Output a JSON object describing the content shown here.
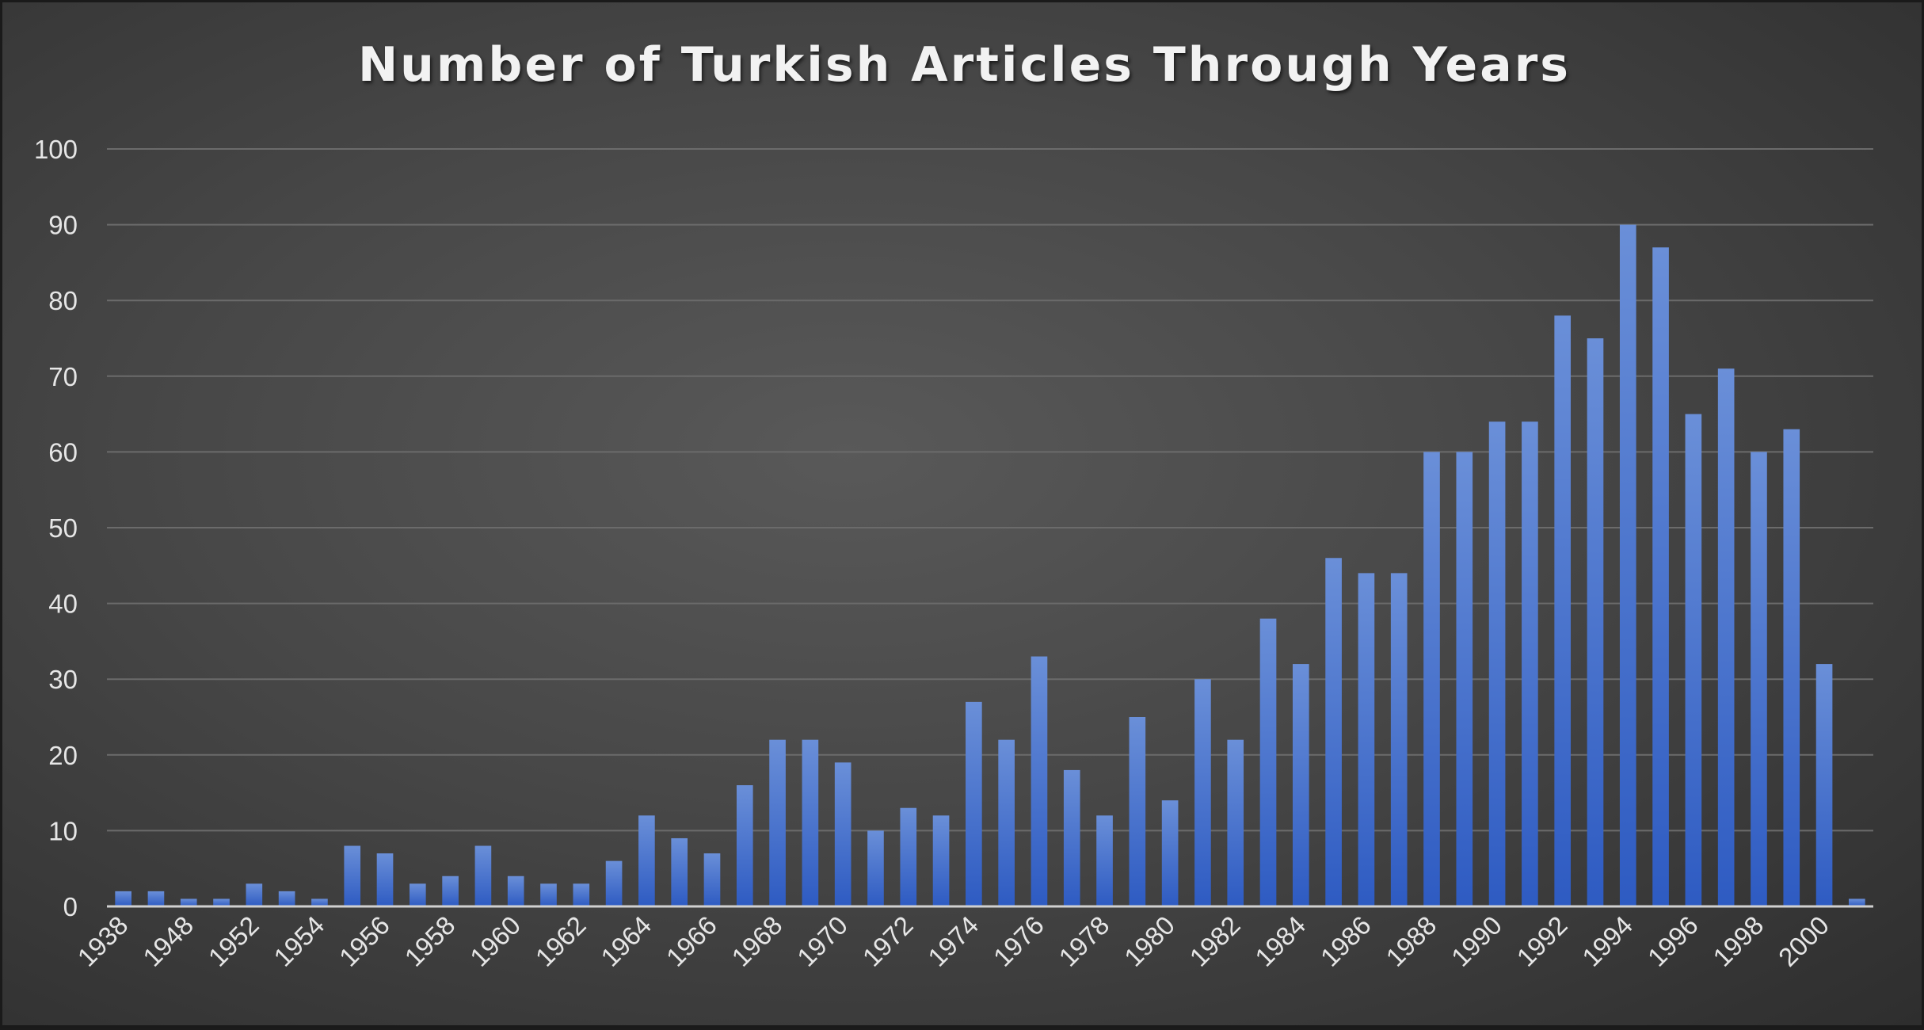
{
  "chart_data": {
    "type": "bar",
    "title": "Number of Turkish Articles Through Years",
    "xlabel": "",
    "ylabel": "",
    "ylim": [
      0,
      100
    ],
    "yticks": [
      0,
      10,
      20,
      30,
      40,
      50,
      60,
      70,
      80,
      90,
      100
    ],
    "grid": true,
    "legend": "none",
    "bar_color": "#4472c4",
    "categories": [
      "1938",
      "",
      "1948",
      "",
      "1952",
      "",
      "1954",
      "",
      "1956",
      "",
      "1958",
      "",
      "1960",
      "",
      "1962",
      "",
      "1964",
      "",
      "1966",
      "",
      "1968",
      "",
      "1970",
      "",
      "1972",
      "",
      "1974",
      "",
      "1976",
      "",
      "1978",
      "",
      "1980",
      "",
      "1982",
      "",
      "1984",
      "",
      "1986",
      "",
      "1988",
      "",
      "1990",
      "",
      "1992",
      "",
      "1994",
      "",
      "1996",
      "",
      "1998",
      "",
      "2000",
      ""
    ],
    "values": [
      2,
      2,
      1,
      1,
      3,
      2,
      1,
      8,
      7,
      3,
      4,
      8,
      4,
      3,
      3,
      6,
      12,
      9,
      7,
      16,
      22,
      22,
      19,
      10,
      13,
      12,
      27,
      22,
      33,
      18,
      12,
      25,
      14,
      30,
      22,
      38,
      32,
      46,
      44,
      44,
      60,
      60,
      64,
      64,
      78,
      75,
      90,
      87,
      65,
      71,
      60,
      63,
      32,
      1
    ]
  }
}
